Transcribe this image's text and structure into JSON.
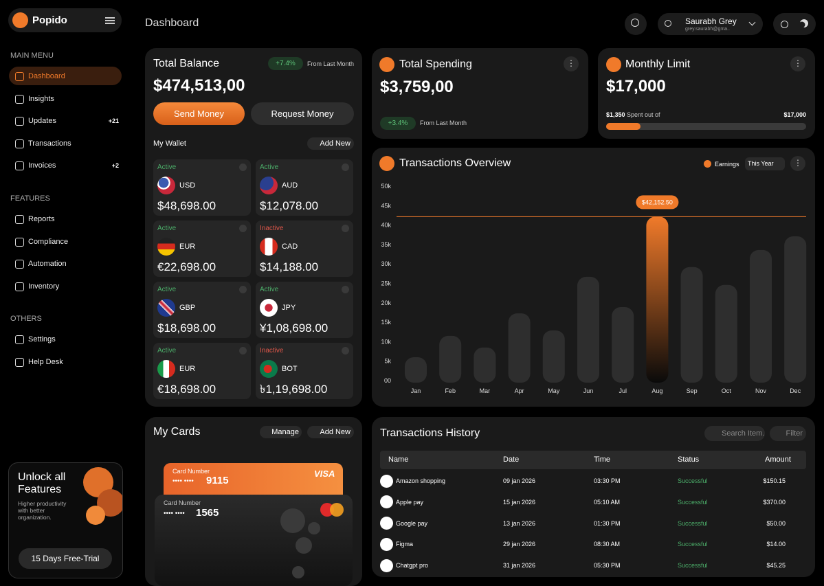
{
  "sidebar": {
    "brand": "Popido",
    "sections": [
      {
        "title": "MAIN MENU",
        "items": [
          {
            "label": "Dashboard"
          },
          {
            "label": "Insights"
          },
          {
            "label": "Updates",
            "badge": "+21"
          },
          {
            "label": "Transactions"
          },
          {
            "label": "Invoices",
            "badge": "+2"
          }
        ]
      },
      {
        "title": "FEATURES",
        "items": [
          {
            "label": "Reports"
          },
          {
            "label": "Compliance"
          },
          {
            "label": "Automation"
          },
          {
            "label": "Inventory"
          }
        ]
      },
      {
        "title": "OTHERS",
        "items": [
          {
            "label": "Settings"
          },
          {
            "label": "Help Desk"
          }
        ]
      }
    ],
    "promo": {
      "title": "Unlock all Features",
      "text": "Higher productivity with better organization.",
      "button": "15 Days Free-Trial"
    }
  },
  "header": {
    "title": "Dashboard",
    "user": {
      "name": "Saurabh Grey",
      "email": "grey.saurabh@gma.."
    }
  },
  "balance": {
    "title": "Total Balance",
    "change": "+7.4%",
    "change_note": "From Last Month",
    "amount": "$474,513,00",
    "send": "Send Money",
    "request": "Request Money",
    "wallet_title": "My Wallet",
    "add": "Add New",
    "wallets": [
      {
        "status": "Active",
        "currency": "USD",
        "amount": "$48,698.00"
      },
      {
        "status": "Active",
        "currency": "AUD",
        "amount": "$12,078.00"
      },
      {
        "status": "Active",
        "currency": "EUR",
        "amount": "€22,698.00"
      },
      {
        "status": "Inactive",
        "currency": "CAD",
        "amount": "$14,188.00"
      },
      {
        "status": "Active",
        "currency": "GBP",
        "amount": "$18,698.00"
      },
      {
        "status": "Active",
        "currency": "JPY",
        "amount": "¥1,08,698.00"
      },
      {
        "status": "Active",
        "currency": "EUR",
        "amount": "€18,698.00"
      },
      {
        "status": "Inactive",
        "currency": "BOT",
        "amount": "৳1,19,698.00"
      }
    ]
  },
  "spending": {
    "title": "Total Spending",
    "amount": "$3,759,00",
    "change": "+3.4%",
    "change_note": "From Last Month"
  },
  "limit": {
    "title": "Monthly Limit",
    "amount": "$17,000",
    "spent": "$1,350",
    "spent_text": "Spent out of",
    "limit": "$17,000"
  },
  "overview_filter": "This Year",
  "chart_data": {
    "type": "bar",
    "title": "Transactions Overview",
    "categories": [
      "Jan",
      "Feb",
      "Mar",
      "Apr",
      "May",
      "Jun",
      "Jul",
      "Aug",
      "Sep",
      "Oct",
      "Nov",
      "Dec"
    ],
    "series": [
      {
        "name": "Earnings",
        "color": "#f07a2a",
        "values": [
          6000,
          11500,
          8500,
          17300,
          12900,
          26700,
          18900,
          42152.5,
          29200,
          24600,
          33600,
          37100
        ],
        "value_labels": [
          null,
          null,
          null,
          null,
          null,
          null,
          null,
          "$42,152.50",
          null,
          null,
          null,
          null
        ]
      }
    ],
    "highlight_index": 7,
    "ylim": [
      0,
      50000
    ],
    "yticks": [
      {
        "value": 0,
        "label": "00"
      },
      {
        "value": 5000,
        "label": "5k"
      },
      {
        "value": 10000,
        "label": "10k"
      },
      {
        "value": 15000,
        "label": "15k"
      },
      {
        "value": 20000,
        "label": "20k"
      },
      {
        "value": 25000,
        "label": "25k"
      },
      {
        "value": 30000,
        "label": "30k"
      },
      {
        "value": 35000,
        "label": "35k"
      },
      {
        "value": 40000,
        "label": "40k"
      },
      {
        "value": 45000,
        "label": "45k"
      },
      {
        "value": 50000,
        "label": "50k"
      }
    ],
    "grid": false
  },
  "cards": {
    "title": "My Cards",
    "manage": "Manage",
    "add": "Add New",
    "items": [
      {
        "label": "Card Number",
        "masked": "•••• ••••",
        "last4": "9115",
        "brand": "VISA"
      },
      {
        "label": "Card Number",
        "masked": "•••• ••••",
        "last4": "1565"
      }
    ]
  },
  "history": {
    "title": "Transactions History",
    "search": "Search Item.",
    "filter": "Filter",
    "columns": [
      "Name",
      "Date",
      "Time",
      "Status",
      "Amount"
    ],
    "rows": [
      [
        "Amazon shopping",
        "09 jan 2026",
        "03:30 PM",
        "Successful",
        "$150.15"
      ],
      [
        "Apple pay",
        "15 jan 2026",
        "05:10 AM",
        "Successful",
        "$370.00"
      ],
      [
        "Google pay",
        "13 jan 2026",
        "01:30 PM",
        "Successful",
        "$50.00"
      ],
      [
        "Figma",
        "29 jan 2026",
        "08:30 AM",
        "Successful",
        "$14.00"
      ],
      [
        "Chatgpt pro",
        "31 jan 2026",
        "05:30 PM",
        "Successful",
        "$45.25"
      ]
    ]
  }
}
